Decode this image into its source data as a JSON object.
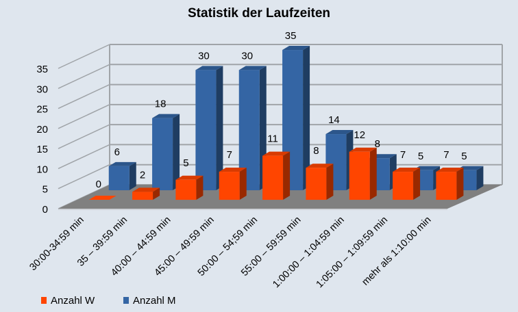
{
  "chart_data": {
    "type": "bar",
    "subtype": "3d-clustered-column",
    "title": "Statistik der Laufzeiten",
    "categories": [
      "30:00-34:59 min",
      "35 – 39:59 min",
      "40:00 – 44:59 min",
      "45:00 – 49:59 min",
      "50:00 – 54;59 min",
      "55:00 – 59:59 min",
      "1:00:00 – 1:04:59 min",
      "1:05:00 – 1:09:59 min",
      "mehr als 1:10:00 min"
    ],
    "series": [
      {
        "name": "Anzahl W",
        "color": "#ff4500",
        "values": [
          0,
          2,
          5,
          7,
          11,
          8,
          12,
          7,
          7
        ]
      },
      {
        "name": "Anzahl M",
        "color": "#3465a4",
        "values": [
          6,
          18,
          30,
          30,
          35,
          14,
          8,
          5,
          5
        ]
      }
    ],
    "ylim": [
      0,
      35
    ],
    "yticks": [
      0,
      5,
      10,
      15,
      20,
      25,
      30,
      35
    ],
    "grid": true,
    "legend": "bottom-left",
    "data_labels": true
  }
}
